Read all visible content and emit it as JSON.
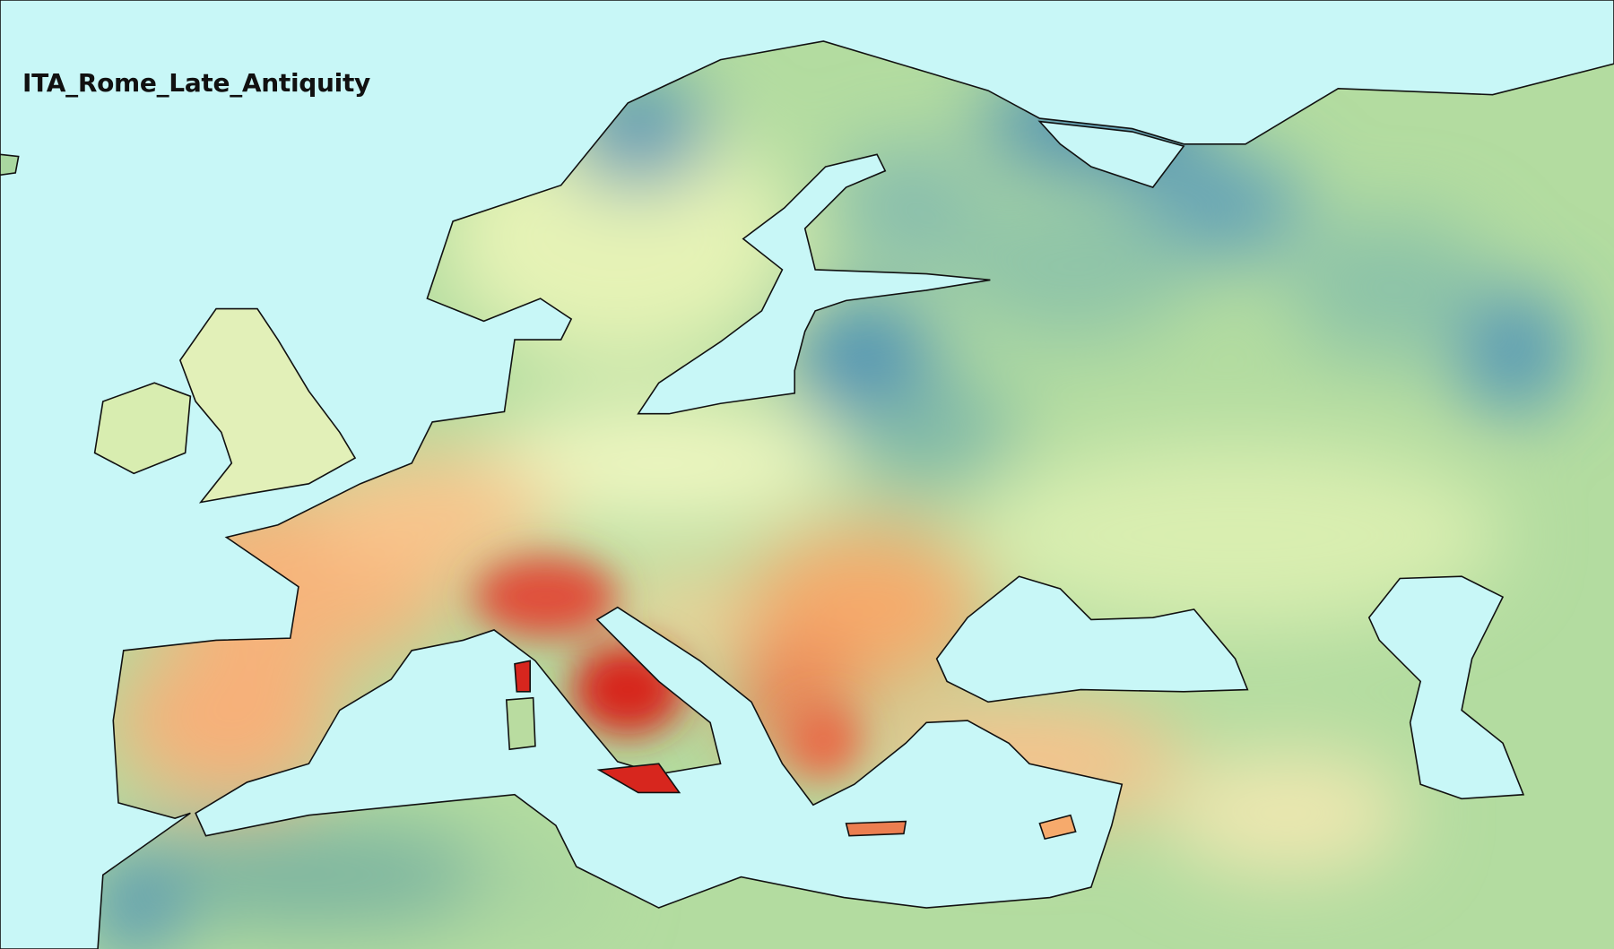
{
  "map": {
    "title": "ITA_Rome_Late_Antiquity",
    "type": "interpolated similarity heatmap",
    "colors": {
      "sea": "#c8f7f7",
      "coastline": "#111111",
      "highest": "#d7261e",
      "high": "#f4a060",
      "mid": "#eef5bf",
      "low": "#a9d7a0",
      "lowest": "#3f88b8"
    }
  }
}
